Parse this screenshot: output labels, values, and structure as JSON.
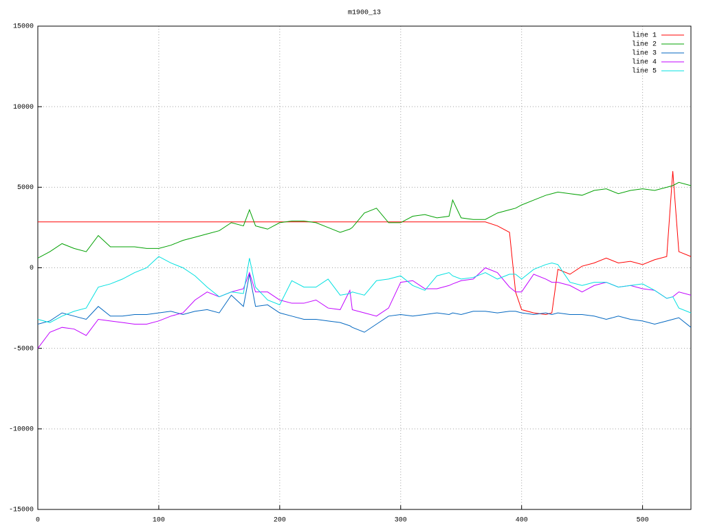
{
  "chart_data": {
    "type": "line",
    "title": "m1900_13",
    "x": [
      0,
      10,
      20,
      30,
      40,
      50,
      60,
      70,
      80,
      90,
      100,
      110,
      120,
      130,
      140,
      150,
      160,
      170,
      175,
      180,
      190,
      200,
      210,
      220,
      230,
      240,
      250,
      258,
      260,
      270,
      280,
      290,
      300,
      310,
      320,
      330,
      340,
      343,
      350,
      360,
      370,
      380,
      390,
      395,
      400,
      410,
      420,
      425,
      430,
      440,
      450,
      460,
      470,
      480,
      490,
      500,
      510,
      520,
      525,
      530,
      540
    ],
    "series": [
      {
        "name": "line 1",
        "color": "#ff0000",
        "values": [
          2850,
          2850,
          2850,
          2850,
          2850,
          2850,
          2850,
          2850,
          2850,
          2850,
          2850,
          2850,
          2850,
          2850,
          2850,
          2850,
          2850,
          2850,
          2850,
          2850,
          2850,
          2850,
          2850,
          2850,
          2850,
          2850,
          2850,
          2850,
          2850,
          2850,
          2850,
          2850,
          2850,
          2850,
          2850,
          2850,
          2850,
          2850,
          2850,
          2850,
          2850,
          2600,
          2200,
          -1500,
          -2600,
          -2800,
          -2900,
          -2800,
          -100,
          -400,
          100,
          300,
          600,
          300,
          400,
          200,
          500,
          700,
          6000,
          1000,
          700
        ]
      },
      {
        "name": "line 2",
        "color": "#00a000",
        "values": [
          600,
          1000,
          1500,
          1200,
          1000,
          2000,
          1300,
          1300,
          1300,
          1200,
          1200,
          1400,
          1700,
          1900,
          2100,
          2300,
          2800,
          2600,
          3600,
          2600,
          2400,
          2800,
          2900,
          2900,
          2800,
          2500,
          2200,
          2400,
          2500,
          3400,
          3700,
          2800,
          2800,
          3200,
          3300,
          3100,
          3200,
          4200,
          3100,
          3000,
          3000,
          3400,
          3600,
          3700,
          3900,
          4200,
          4500,
          4600,
          4700,
          4600,
          4500,
          4800,
          4900,
          4600,
          4800,
          4900,
          4800,
          5000,
          5100,
          5300,
          5100
        ]
      },
      {
        "name": "line 3",
        "color": "#0066c0",
        "values": [
          -3500,
          -3300,
          -2800,
          -3000,
          -3200,
          -2400,
          -3000,
          -3000,
          -2900,
          -2900,
          -2800,
          -2700,
          -2900,
          -2700,
          -2600,
          -2800,
          -1700,
          -2400,
          -400,
          -2400,
          -2300,
          -2800,
          -3000,
          -3200,
          -3200,
          -3300,
          -3400,
          -3600,
          -3700,
          -4000,
          -3500,
          -3000,
          -2900,
          -3000,
          -2900,
          -2800,
          -2900,
          -2800,
          -2900,
          -2700,
          -2700,
          -2800,
          -2700,
          -2700,
          -2800,
          -2900,
          -2800,
          -2900,
          -2800,
          -2900,
          -2900,
          -3000,
          -3200,
          -3000,
          -3200,
          -3300,
          -3500,
          -3300,
          -3200,
          -3100,
          -3700
        ]
      },
      {
        "name": "line 4",
        "color": "#c000ff",
        "values": [
          -5000,
          -4000,
          -3700,
          -3800,
          -4200,
          -3200,
          -3300,
          -3400,
          -3500,
          -3500,
          -3300,
          -3000,
          -2800,
          -2000,
          -1500,
          -1800,
          -1500,
          -1300,
          -300,
          -1500,
          -1500,
          -2000,
          -2200,
          -2200,
          -2000,
          -2500,
          -2600,
          -1400,
          -2600,
          -2800,
          -3000,
          -2500,
          -900,
          -800,
          -1300,
          -1300,
          -1100,
          -1000,
          -800,
          -700,
          0,
          -300,
          -1200,
          -1500,
          -1500,
          -400,
          -700,
          -900,
          -900,
          -1100,
          -1500,
          -1100,
          -900,
          -1200,
          -1100,
          -1300,
          -1400,
          -1900,
          -1800,
          -1500,
          -1700
        ]
      },
      {
        "name": "line 5",
        "color": "#00e0e0",
        "values": [
          -3200,
          -3400,
          -3000,
          -2700,
          -2500,
          -1200,
          -1000,
          -700,
          -300,
          0,
          700,
          300,
          0,
          -500,
          -1200,
          -1800,
          -1500,
          -1600,
          600,
          -1200,
          -2000,
          -2300,
          -800,
          -1200,
          -1200,
          -700,
          -1700,
          -1600,
          -1500,
          -1700,
          -800,
          -700,
          -500,
          -1100,
          -1400,
          -500,
          -300,
          -500,
          -700,
          -600,
          -300,
          -700,
          -400,
          -400,
          -700,
          -100,
          200,
          300,
          200,
          -900,
          -1100,
          -900,
          -900,
          -1200,
          -1100,
          -1000,
          -1400,
          -1900,
          -1800,
          -2500,
          -2800
        ]
      }
    ],
    "xlim": [
      0,
      540
    ],
    "ylim": [
      -15000,
      15000
    ],
    "xticks": [
      0,
      100,
      200,
      300,
      400,
      500
    ],
    "yticks": [
      -15000,
      -10000,
      -5000,
      0,
      5000,
      10000,
      15000
    ],
    "grid": true
  }
}
